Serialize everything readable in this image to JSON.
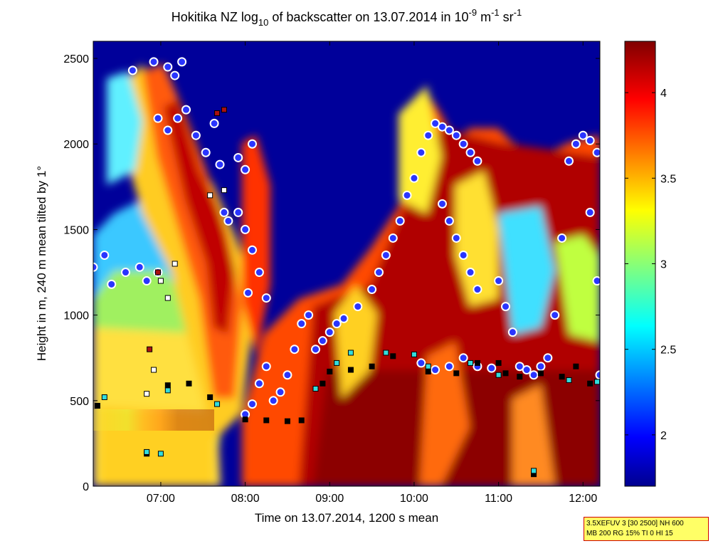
{
  "chart_data": {
    "type": "heatmap",
    "title": {
      "prefix": "Hokitika NZ log",
      "sub": "10",
      "middle": " of backscatter on 13.07.2014 in 10",
      "sup1": "-9",
      "middle2": " m",
      "sup2": "-1",
      "middle3": " sr",
      "sup3": "-1"
    },
    "xlabel": "Time on 13.07.2014, 1200 s mean",
    "ylabel": "Height in m, 240 m mean tilted by 1°",
    "xlim": [
      "06:12",
      "12:12"
    ],
    "ylim": [
      0,
      2600
    ],
    "x_ticks": [
      "07:00",
      "08:00",
      "09:00",
      "10:00",
      "11:00",
      "12:00"
    ],
    "y_ticks": [
      0,
      500,
      1000,
      1500,
      2000,
      2500
    ],
    "colorbar": {
      "range": [
        1.7,
        4.3
      ],
      "ticks": [
        "2",
        "2.5",
        "3",
        "3.5",
        "4"
      ],
      "colormap": "jet"
    },
    "layers": [
      {
        "name": "cloud base (circles)",
        "color": "#2a35ff",
        "edge": "#ffffff",
        "points": [
          [
            "06:12",
            1280
          ],
          [
            "06:20",
            1350
          ],
          [
            "06:25",
            1180
          ],
          [
            "06:35",
            1250
          ],
          [
            "06:45",
            1280
          ],
          [
            "06:50",
            1200
          ],
          [
            "06:58",
            1250
          ],
          [
            "06:40",
            2430
          ],
          [
            "06:55",
            2480
          ],
          [
            "07:05",
            2450
          ],
          [
            "07:10",
            2400
          ],
          [
            "07:15",
            2480
          ],
          [
            "06:58",
            2150
          ],
          [
            "07:05",
            2080
          ],
          [
            "07:12",
            2150
          ],
          [
            "07:18",
            2200
          ],
          [
            "07:25",
            2050
          ],
          [
            "07:32",
            1950
          ],
          [
            "07:38",
            2120
          ],
          [
            "07:42",
            1880
          ],
          [
            "07:45",
            1600
          ],
          [
            "07:55",
            1920
          ],
          [
            "08:00",
            1850
          ],
          [
            "08:05",
            2000
          ],
          [
            "07:48",
            1550
          ],
          [
            "07:55",
            1600
          ],
          [
            "08:00",
            1500
          ],
          [
            "08:02",
            1130
          ],
          [
            "08:05",
            1380
          ],
          [
            "08:10",
            1250
          ],
          [
            "08:15",
            1100
          ],
          [
            "08:00",
            420
          ],
          [
            "08:05",
            480
          ],
          [
            "08:10",
            600
          ],
          [
            "08:15",
            700
          ],
          [
            "08:20",
            500
          ],
          [
            "08:25",
            550
          ],
          [
            "08:30",
            650
          ],
          [
            "08:35",
            800
          ],
          [
            "08:40",
            950
          ],
          [
            "08:45",
            1000
          ],
          [
            "08:50",
            800
          ],
          [
            "08:55",
            850
          ],
          [
            "09:00",
            900
          ],
          [
            "09:05",
            950
          ],
          [
            "09:10",
            980
          ],
          [
            "09:20",
            1050
          ],
          [
            "09:30",
            1150
          ],
          [
            "09:35",
            1250
          ],
          [
            "09:40",
            1350
          ],
          [
            "09:45",
            1450
          ],
          [
            "09:50",
            1550
          ],
          [
            "09:55",
            1700
          ],
          [
            "10:00",
            1800
          ],
          [
            "10:05",
            1950
          ],
          [
            "10:10",
            2050
          ],
          [
            "10:15",
            2120
          ],
          [
            "10:20",
            2100
          ],
          [
            "10:25",
            2080
          ],
          [
            "10:30",
            2050
          ],
          [
            "10:35",
            2000
          ],
          [
            "10:40",
            1950
          ],
          [
            "10:45",
            1900
          ],
          [
            "10:20",
            1650
          ],
          [
            "10:25",
            1550
          ],
          [
            "10:30",
            1450
          ],
          [
            "10:35",
            1350
          ],
          [
            "10:40",
            1250
          ],
          [
            "10:45",
            1150
          ],
          [
            "10:05",
            720
          ],
          [
            "10:15",
            680
          ],
          [
            "10:25",
            700
          ],
          [
            "10:35",
            750
          ],
          [
            "10:45",
            700
          ],
          [
            "10:55",
            690
          ],
          [
            "11:00",
            1200
          ],
          [
            "11:05",
            1050
          ],
          [
            "11:10",
            900
          ],
          [
            "11:15",
            700
          ],
          [
            "11:20",
            680
          ],
          [
            "11:25",
            650
          ],
          [
            "11:30",
            700
          ],
          [
            "11:35",
            750
          ],
          [
            "11:40",
            1000
          ],
          [
            "11:45",
            1450
          ],
          [
            "11:50",
            1900
          ],
          [
            "11:55",
            2000
          ],
          [
            "12:00",
            2050
          ],
          [
            "12:05",
            2020
          ],
          [
            "12:10",
            1950
          ],
          [
            "12:05",
            1600
          ],
          [
            "12:10",
            1200
          ],
          [
            "12:12",
            650
          ]
        ]
      },
      {
        "name": "black squares",
        "color": "#000000",
        "points": [
          [
            "06:15",
            470
          ],
          [
            "07:05",
            590
          ],
          [
            "07:20",
            600
          ],
          [
            "07:35",
            520
          ],
          [
            "08:00",
            390
          ],
          [
            "08:15",
            385
          ],
          [
            "08:30",
            380
          ],
          [
            "08:40",
            385
          ],
          [
            "08:55",
            600
          ],
          [
            "09:00",
            670
          ],
          [
            "09:15",
            680
          ],
          [
            "09:30",
            700
          ],
          [
            "09:45",
            760
          ],
          [
            "10:10",
            670
          ],
          [
            "10:30",
            660
          ],
          [
            "10:45",
            720
          ],
          [
            "11:00",
            720
          ],
          [
            "11:05",
            660
          ],
          [
            "11:15",
            640
          ],
          [
            "11:30",
            660
          ],
          [
            "11:45",
            640
          ],
          [
            "11:55",
            700
          ],
          [
            "12:05",
            600
          ],
          [
            "06:50",
            190
          ],
          [
            "11:25",
            70
          ]
        ]
      },
      {
        "name": "cyan squares",
        "color": "#33dddd",
        "points": [
          [
            "06:20",
            520
          ],
          [
            "06:50",
            200
          ],
          [
            "07:00",
            190
          ],
          [
            "07:05",
            560
          ],
          [
            "07:40",
            480
          ],
          [
            "08:50",
            570
          ],
          [
            "09:05",
            720
          ],
          [
            "09:15",
            780
          ],
          [
            "09:40",
            780
          ],
          [
            "10:00",
            770
          ],
          [
            "10:10",
            700
          ],
          [
            "10:40",
            720
          ],
          [
            "11:00",
            650
          ],
          [
            "11:25",
            90
          ],
          [
            "11:50",
            620
          ],
          [
            "12:10",
            610
          ]
        ]
      },
      {
        "name": "white squares",
        "color": "#ffffff",
        "points": [
          [
            "06:50",
            540
          ],
          [
            "06:55",
            680
          ],
          [
            "07:00",
            1200
          ],
          [
            "07:05",
            1100
          ],
          [
            "07:10",
            1300
          ],
          [
            "07:35",
            1700
          ],
          [
            "07:45",
            1730
          ]
        ]
      },
      {
        "name": "dark red squares",
        "color": "#aa1111",
        "points": [
          [
            "06:52",
            800
          ],
          [
            "06:58",
            1250
          ],
          [
            "07:40",
            2180
          ],
          [
            "07:45",
            2200
          ]
        ]
      }
    ]
  },
  "info_box": {
    "line1": "3.5XEFUV 3 [30 2500] NH 600",
    "line2": "MB 200 RG 15% TI 0 HI 15"
  }
}
